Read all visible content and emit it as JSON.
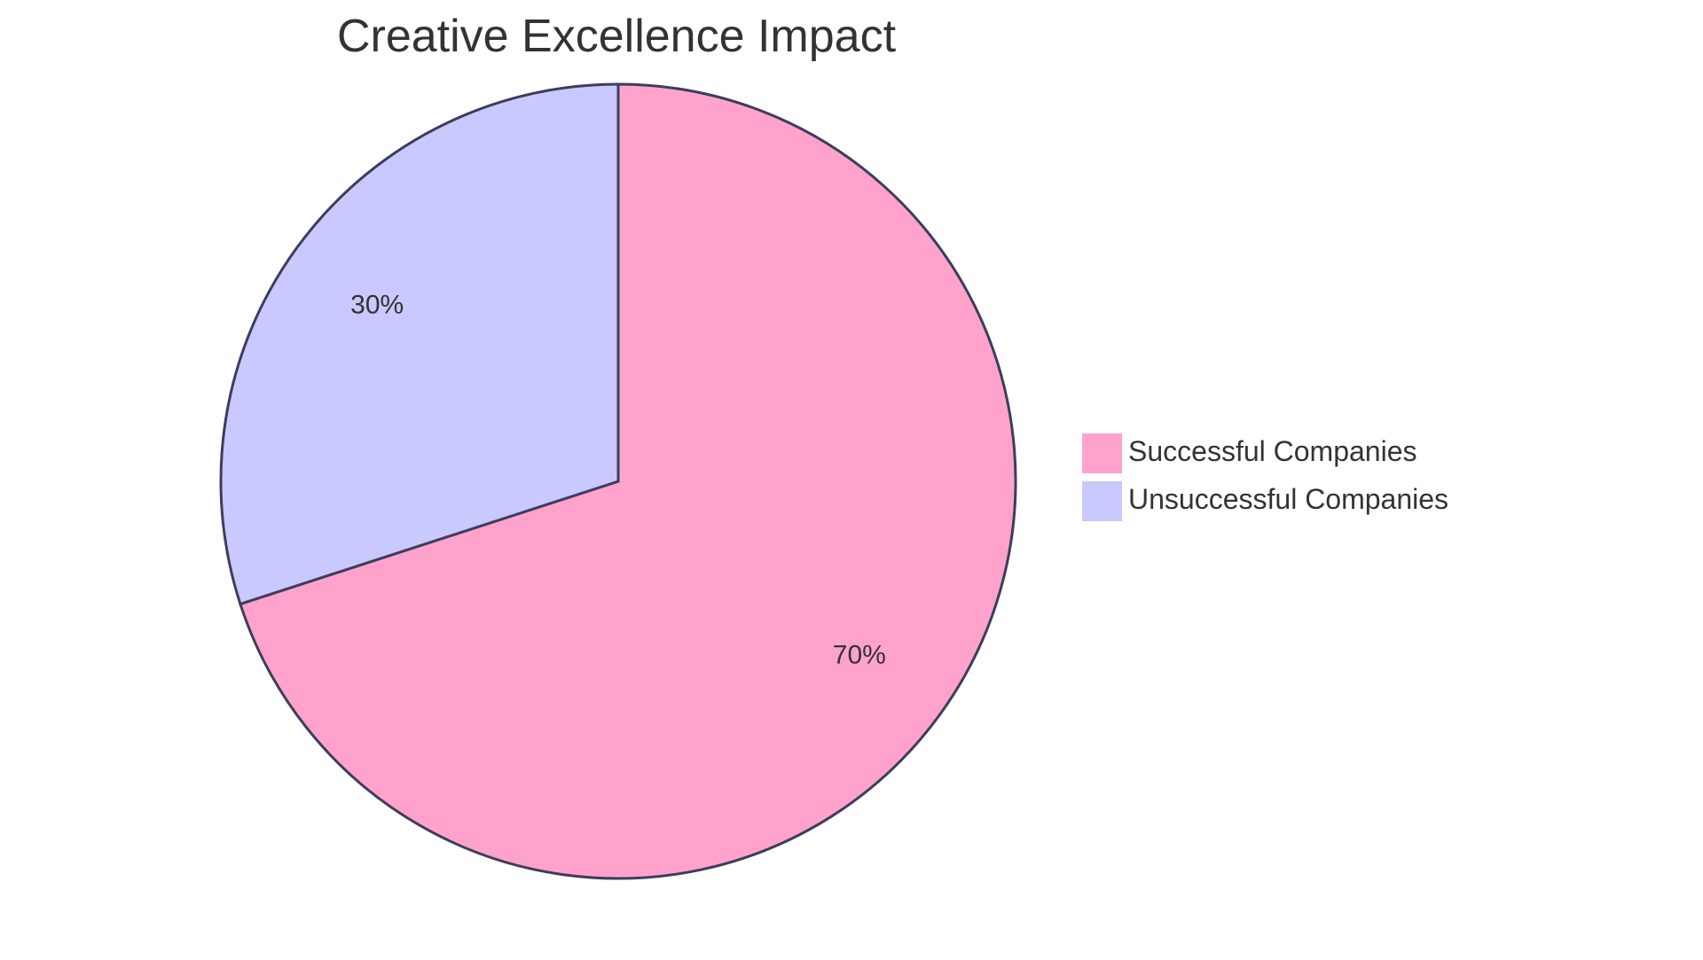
{
  "chart_data": {
    "type": "pie",
    "title": "Creative Excellence Impact",
    "slices": [
      {
        "name": "Successful Companies",
        "value": 70,
        "label": "70%",
        "color": "#FFA3CC"
      },
      {
        "name": "Unsuccessful Companies",
        "value": 30,
        "label": "30%",
        "color": "#C9C9FF"
      }
    ],
    "legend_position": "right",
    "outline_color": "#3D3D5C"
  }
}
